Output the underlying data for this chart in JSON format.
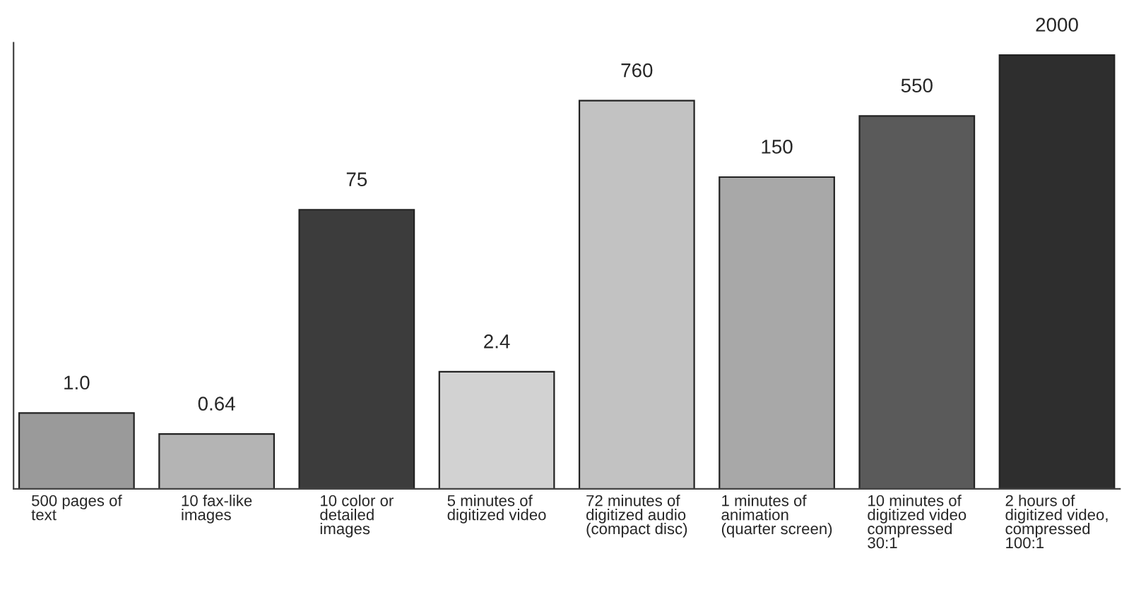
{
  "chart_data": {
    "type": "bar",
    "categories": [
      "500 pages of\ntext",
      "10 fax-like\nimages",
      "10 color or\ndetailed\nimages",
      "5 minutes of\ndigitized video",
      "72 minutes of\ndigitized audio\n(compact disc)",
      "1 minutes of\nanimation\n(quarter screen)",
      "10 minutes of\ndigitized video\ncompressed\n30:1",
      "2 hours of\ndigitized video,\ncompressed\n100:1"
    ],
    "values": [
      1.0,
      0.64,
      75,
      2.4,
      760,
      150,
      550,
      2000
    ],
    "value_labels": [
      "1.0",
      "0.64",
      "75",
      "2.4",
      "760",
      "150",
      "550",
      "2000"
    ],
    "colors": [
      "#9a9a9a",
      "#b4b4b4",
      "#3c3c3c",
      "#d2d2d2",
      "#c2c2c2",
      "#a8a8a8",
      "#5a5a5a",
      "#2e2e2e"
    ],
    "log": true,
    "ylim": [
      0.2,
      2600
    ],
    "tick_labels": "x",
    "grid": false,
    "legend": false
  }
}
